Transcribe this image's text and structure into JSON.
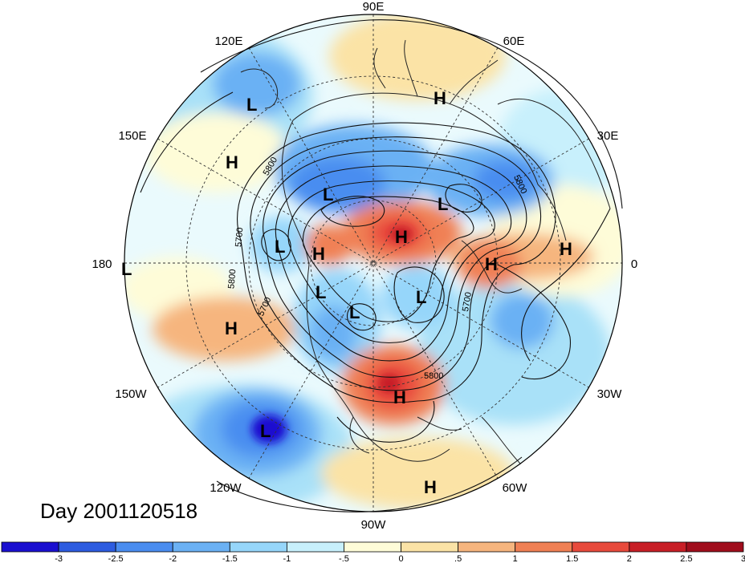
{
  "day_label": "Day 2001120518",
  "longitude_labels": [
    {
      "lon": 90,
      "text": "90E"
    },
    {
      "lon": 120,
      "text": "120E"
    },
    {
      "lon": 60,
      "text": "60E"
    },
    {
      "lon": 150,
      "text": "150E"
    },
    {
      "lon": 30,
      "text": "30E"
    },
    {
      "lon": 180,
      "text": "180"
    },
    {
      "lon": 0,
      "text": "0"
    },
    {
      "lon": -150,
      "text": "150W"
    },
    {
      "lon": -30,
      "text": "30W"
    },
    {
      "lon": -120,
      "text": "120W"
    },
    {
      "lon": -60,
      "text": "60W"
    },
    {
      "lon": -90,
      "text": "90W"
    }
  ],
  "pressure_centers": [
    {
      "type": "L",
      "text": "L"
    },
    {
      "type": "H",
      "text": "H"
    },
    {
      "type": "H",
      "text": "H"
    },
    {
      "type": "L",
      "text": "L"
    },
    {
      "type": "L",
      "text": "L"
    },
    {
      "type": "L",
      "text": "L"
    },
    {
      "type": "H",
      "text": "H"
    },
    {
      "type": "H",
      "text": "H"
    },
    {
      "type": "H",
      "text": "H"
    },
    {
      "type": "H",
      "text": "H"
    },
    {
      "type": "L",
      "text": "L"
    },
    {
      "type": "L",
      "text": "L"
    },
    {
      "type": "L",
      "text": "L"
    },
    {
      "type": "L",
      "text": "L"
    },
    {
      "type": "H",
      "text": "H"
    },
    {
      "type": "H",
      "text": "H"
    },
    {
      "type": "L",
      "text": "L"
    },
    {
      "type": "H",
      "text": "H"
    }
  ],
  "contour_labels": [
    "5800",
    "5700",
    "5800",
    "5700",
    "5800",
    "5700",
    "5800"
  ],
  "colorbar": {
    "tick_labels": [
      "-3",
      "-2.5",
      "-2",
      "-1.5",
      "-1",
      "-.5",
      "0",
      ".5",
      "1",
      "1.5",
      "2",
      "2.5",
      "3"
    ],
    "colors": [
      "#1a0fd0",
      "#2d5ce0",
      "#4a8df0",
      "#6bb1f4",
      "#96d6fa",
      "#c8f0fc",
      "#fefcd8",
      "#fbe3a6",
      "#f6b57e",
      "#f08054",
      "#e84a3c",
      "#c81e26",
      "#a00d1c"
    ]
  }
}
